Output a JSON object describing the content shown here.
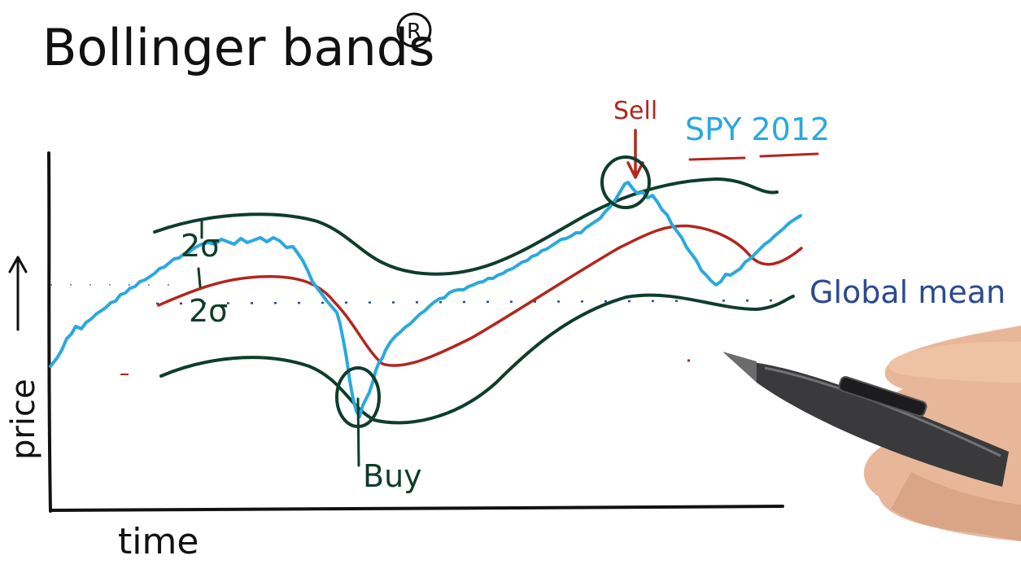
{
  "title": "Bollinger bands",
  "title_mark": "R",
  "labels": {
    "ylabel": "price",
    "xlabel": "time",
    "series": "SPY 2012",
    "global_mean": "Global mean",
    "sell": "Sell",
    "buy": "Buy",
    "upper_band": "2σ",
    "lower_band": "2σ"
  },
  "colors": {
    "price": "#2aa9dd",
    "mean": "#b3261e",
    "bands": "#0f3d2a",
    "global_mean": "#2b4a8f",
    "ink": "#111111"
  }
}
